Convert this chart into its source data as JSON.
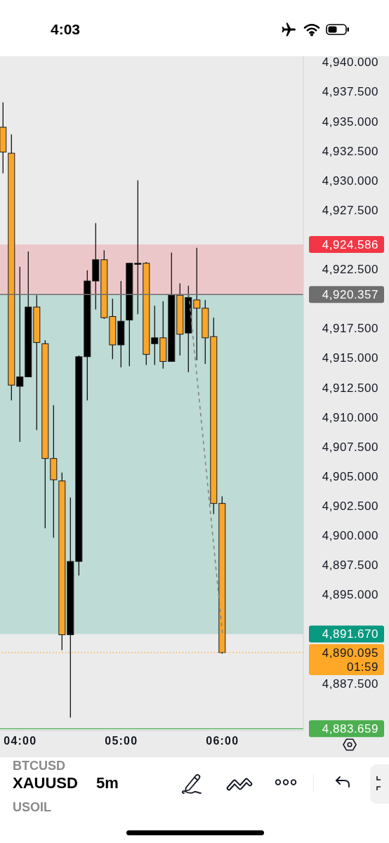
{
  "chart_data": {
    "type": "candlestick",
    "title": "XAUUSD",
    "subtitle": "5m",
    "annotations": [
      "4:03",
      "BTCUSD",
      "USOIL"
    ],
    "x": [
      3.8333,
      3.9167,
      4,
      4.0833,
      4.1667,
      4.25,
      4.3333,
      4.4167,
      4.5,
      4.5833,
      4.6667,
      4.75,
      4.8333,
      4.9167,
      5,
      5.0833,
      5.1667,
      5.25,
      5.3333,
      5.4167,
      5.5,
      5.5833,
      5.6667,
      5.75,
      5.8333,
      5.9167,
      6
    ],
    "ohlc": [
      [
        4934.5,
        4936.6,
        4930.6,
        4932.4
      ],
      [
        4932.3,
        4933.9,
        4911.4,
        4912.7
      ],
      [
        4912.6,
        4922.7,
        4907.9,
        4913.4
      ],
      [
        4913.4,
        4924.0,
        4913.4,
        4919.3
      ],
      [
        4919.3,
        4920.3,
        4908.9,
        4916.3
      ],
      [
        4916.2,
        4916.5,
        4900.6,
        4906.5
      ],
      [
        4906.5,
        4911.0,
        4899.8,
        4904.7
      ],
      [
        4904.6,
        4905.3,
        4890.3,
        4891.6
      ],
      [
        4891.6,
        4903.2,
        4884.6,
        4897.8
      ],
      [
        4897.8,
        4915.2,
        4896.6,
        4915.1
      ],
      [
        4915.1,
        4922.4,
        4911.4,
        4921.5
      ],
      [
        4921.5,
        4926.4,
        4919.1,
        4923.3
      ],
      [
        4923.3,
        4924.1,
        4918.3,
        4918.4
      ],
      [
        4918.5,
        4920.0,
        4914.9,
        4916.1
      ],
      [
        4916.1,
        4921.5,
        4914.2,
        4918.1
      ],
      [
        4918.2,
        4923.0,
        4914.3,
        4923.0
      ],
      [
        4923.0,
        4930.0,
        4918.7,
        4923.0
      ],
      [
        4923.0,
        4923.1,
        4914.4,
        4915.3
      ],
      [
        4916.2,
        4919.4,
        4914.4,
        4916.7
      ],
      [
        4916.7,
        4919.8,
        4914.1,
        4914.7
      ],
      [
        4914.7,
        4923.9,
        4914.7,
        4920.3
      ],
      [
        4920.3,
        4921.3,
        4915.2,
        4917.0
      ],
      [
        4917.1,
        4921.1,
        4913.8,
        4920.1
      ],
      [
        4919.9,
        4924.3,
        4914.8,
        4919.2
      ],
      [
        4919.2,
        4919.9,
        4914.5,
        4916.7
      ],
      [
        4916.8,
        4918.4,
        4901.8,
        4902.7
      ],
      [
        4902.7,
        4903.3,
        4890.0,
        4890.1
      ]
    ],
    "colors": [
      "#f9a62b",
      "#f9a62b",
      "#000000",
      "#000000",
      "#f9a62b",
      "#f9a62b",
      "#f9a62b",
      "#f9a62b",
      "#000000",
      "#000000",
      "#000000",
      "#000000",
      "#f9a62b",
      "#f9a62b",
      "#000000",
      "#000000",
      "#000000",
      "#f9a62b",
      "#000000",
      "#f9a62b",
      "#000000",
      "#f9a62b",
      "#000000",
      "#f9a62b",
      "#f9a62b",
      "#f9a62b",
      "#f9a62b"
    ],
    "series": [
      {
        "type": "line",
        "x": [
          5.6667,
          6
        ],
        "values": [
          4920.4,
          4891.7
        ],
        "color": "#808080",
        "line_style": "dashed"
      }
    ],
    "xlim": [
      3.8,
      6.8
    ],
    "xticks": [
      {
        "value": 4,
        "label": "04:00"
      },
      {
        "value": 5,
        "label": "05:00"
      },
      {
        "value": 6,
        "label": "06:00"
      }
    ],
    "ylim": [
      4883.5,
      4940.5
    ],
    "yticks": [
      {
        "value": 4887.5,
        "label": "4,887.500"
      },
      {
        "value": 4895,
        "label": "4,895.000"
      },
      {
        "value": 4897.5,
        "label": "4,897.500"
      },
      {
        "value": 4900,
        "label": "4,900.000"
      },
      {
        "value": 4902.5,
        "label": "4,902.500"
      },
      {
        "value": 4905,
        "label": "4,905.000"
      },
      {
        "value": 4907.5,
        "label": "4,907.500"
      },
      {
        "value": 4910,
        "label": "4,910.000"
      },
      {
        "value": 4912.5,
        "label": "4,912.500"
      },
      {
        "value": 4915,
        "label": "4,915.000"
      },
      {
        "value": 4917.5,
        "label": "4,917.500"
      },
      {
        "value": 4922.5,
        "label": "4,922.500"
      },
      {
        "value": 4927.5,
        "label": "4,927.500"
      },
      {
        "value": 4930,
        "label": "4,930.000"
      },
      {
        "value": 4932.5,
        "label": "4,932.500"
      },
      {
        "value": 4935,
        "label": "4,935.000"
      },
      {
        "value": 4937.5,
        "label": "4,937.500"
      },
      {
        "value": 4940,
        "label": "4,940.000"
      }
    ],
    "bands": [
      {
        "axis": "y",
        "from": 4920.357,
        "to": 4924.586,
        "label": "4,924.586",
        "color": "#f23645"
      },
      {
        "axis": "y",
        "from": 4920.357,
        "to": 4891.67,
        "label": "4,891.670",
        "color": "#089981"
      }
    ],
    "ref_lines": [
      {
        "axis": "y",
        "value": 4920.357,
        "label": "4,920.357",
        "color": "#6e6e6e",
        "line_style": "solid"
      },
      {
        "axis": "y",
        "value": 4890.095,
        "label": "4,890.095\n01:59",
        "color": "#ffa726",
        "line_style": "dotted"
      },
      {
        "axis": "y",
        "value": 4883.659,
        "label": "4,883.659",
        "color": "#4caf50",
        "line_style": "solid"
      }
    ]
  }
}
